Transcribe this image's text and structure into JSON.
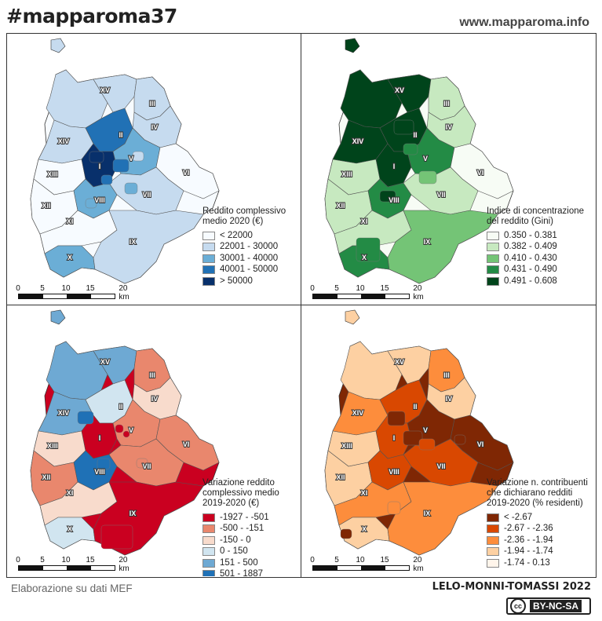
{
  "header": {
    "hashtag": "#mapparoma37",
    "website": "www.mapparoma.info"
  },
  "footer": {
    "source": "Elaborazione su dati MEF",
    "authors": "LELO-MONNI-TOMASSI 2022",
    "license_badge": "cc",
    "license": "BY-NC-SA"
  },
  "scale": {
    "ticks": [
      "0",
      "5",
      "10",
      "15",
      "20 km"
    ]
  },
  "municipi_labels": [
    "I",
    "II",
    "III",
    "IV",
    "V",
    "VI",
    "VII",
    "VIII",
    "IX",
    "X",
    "XI",
    "XII",
    "XIII",
    "XIV",
    "XV"
  ],
  "maps": [
    {
      "id": "reddito",
      "legend_title": [
        "Reddito complessivo",
        "medio 2020 (€)"
      ],
      "classes": [
        {
          "label": "< 22000",
          "color": "#f7fbff"
        },
        {
          "label": "22001 - 30000",
          "color": "#c6dbef"
        },
        {
          "label": "30001 - 40000",
          "color": "#6baed6"
        },
        {
          "label": "40001 - 50000",
          "color": "#2171b5"
        },
        {
          "label": "> 50000",
          "color": "#08306b"
        }
      ]
    },
    {
      "id": "gini",
      "legend_title": [
        "Indice di concentrazione",
        "del reddito (Gini)"
      ],
      "classes": [
        {
          "label": "0.350 - 0.381",
          "color": "#f7fcf5"
        },
        {
          "label": "0.382 - 0.409",
          "color": "#c7e9c0"
        },
        {
          "label": "0.410 - 0.430",
          "color": "#74c476"
        },
        {
          "label": "0.431 - 0.490",
          "color": "#238b45"
        },
        {
          "label": "0.491 - 0.608",
          "color": "#00441b"
        }
      ]
    },
    {
      "id": "variazione_reddito",
      "legend_title": [
        "Variazione reddito",
        "complessivo medio",
        "2019-2020 (€)"
      ],
      "classes": [
        {
          "label": "-1927 - -501",
          "color": "#ca0020"
        },
        {
          "label": "-500 - -151",
          "color": "#e9876d"
        },
        {
          "label": "-150 - 0",
          "color": "#f8dbcc"
        },
        {
          "label": "0 - 150",
          "color": "#d1e5f0"
        },
        {
          "label": "151 - 500",
          "color": "#6ea9d3"
        },
        {
          "label": "501 - 1887",
          "color": "#1f71b6"
        }
      ]
    },
    {
      "id": "variazione_contribuenti",
      "legend_title": [
        "Variazione n. contribuenti",
        "che dichiarano redditi",
        "2019-2020 (% residenti)"
      ],
      "classes": [
        {
          "label": "< -2.67",
          "color": "#7f2704"
        },
        {
          "label": "-2.67 - -2.36",
          "color": "#d94801"
        },
        {
          "label": "-2.36 - -1.94",
          "color": "#fd8d3c"
        },
        {
          "label": "-1.94 - -1.74",
          "color": "#fdd0a2"
        },
        {
          "label": "-1.74 - 0.13",
          "color": "#fff5eb"
        }
      ]
    }
  ]
}
